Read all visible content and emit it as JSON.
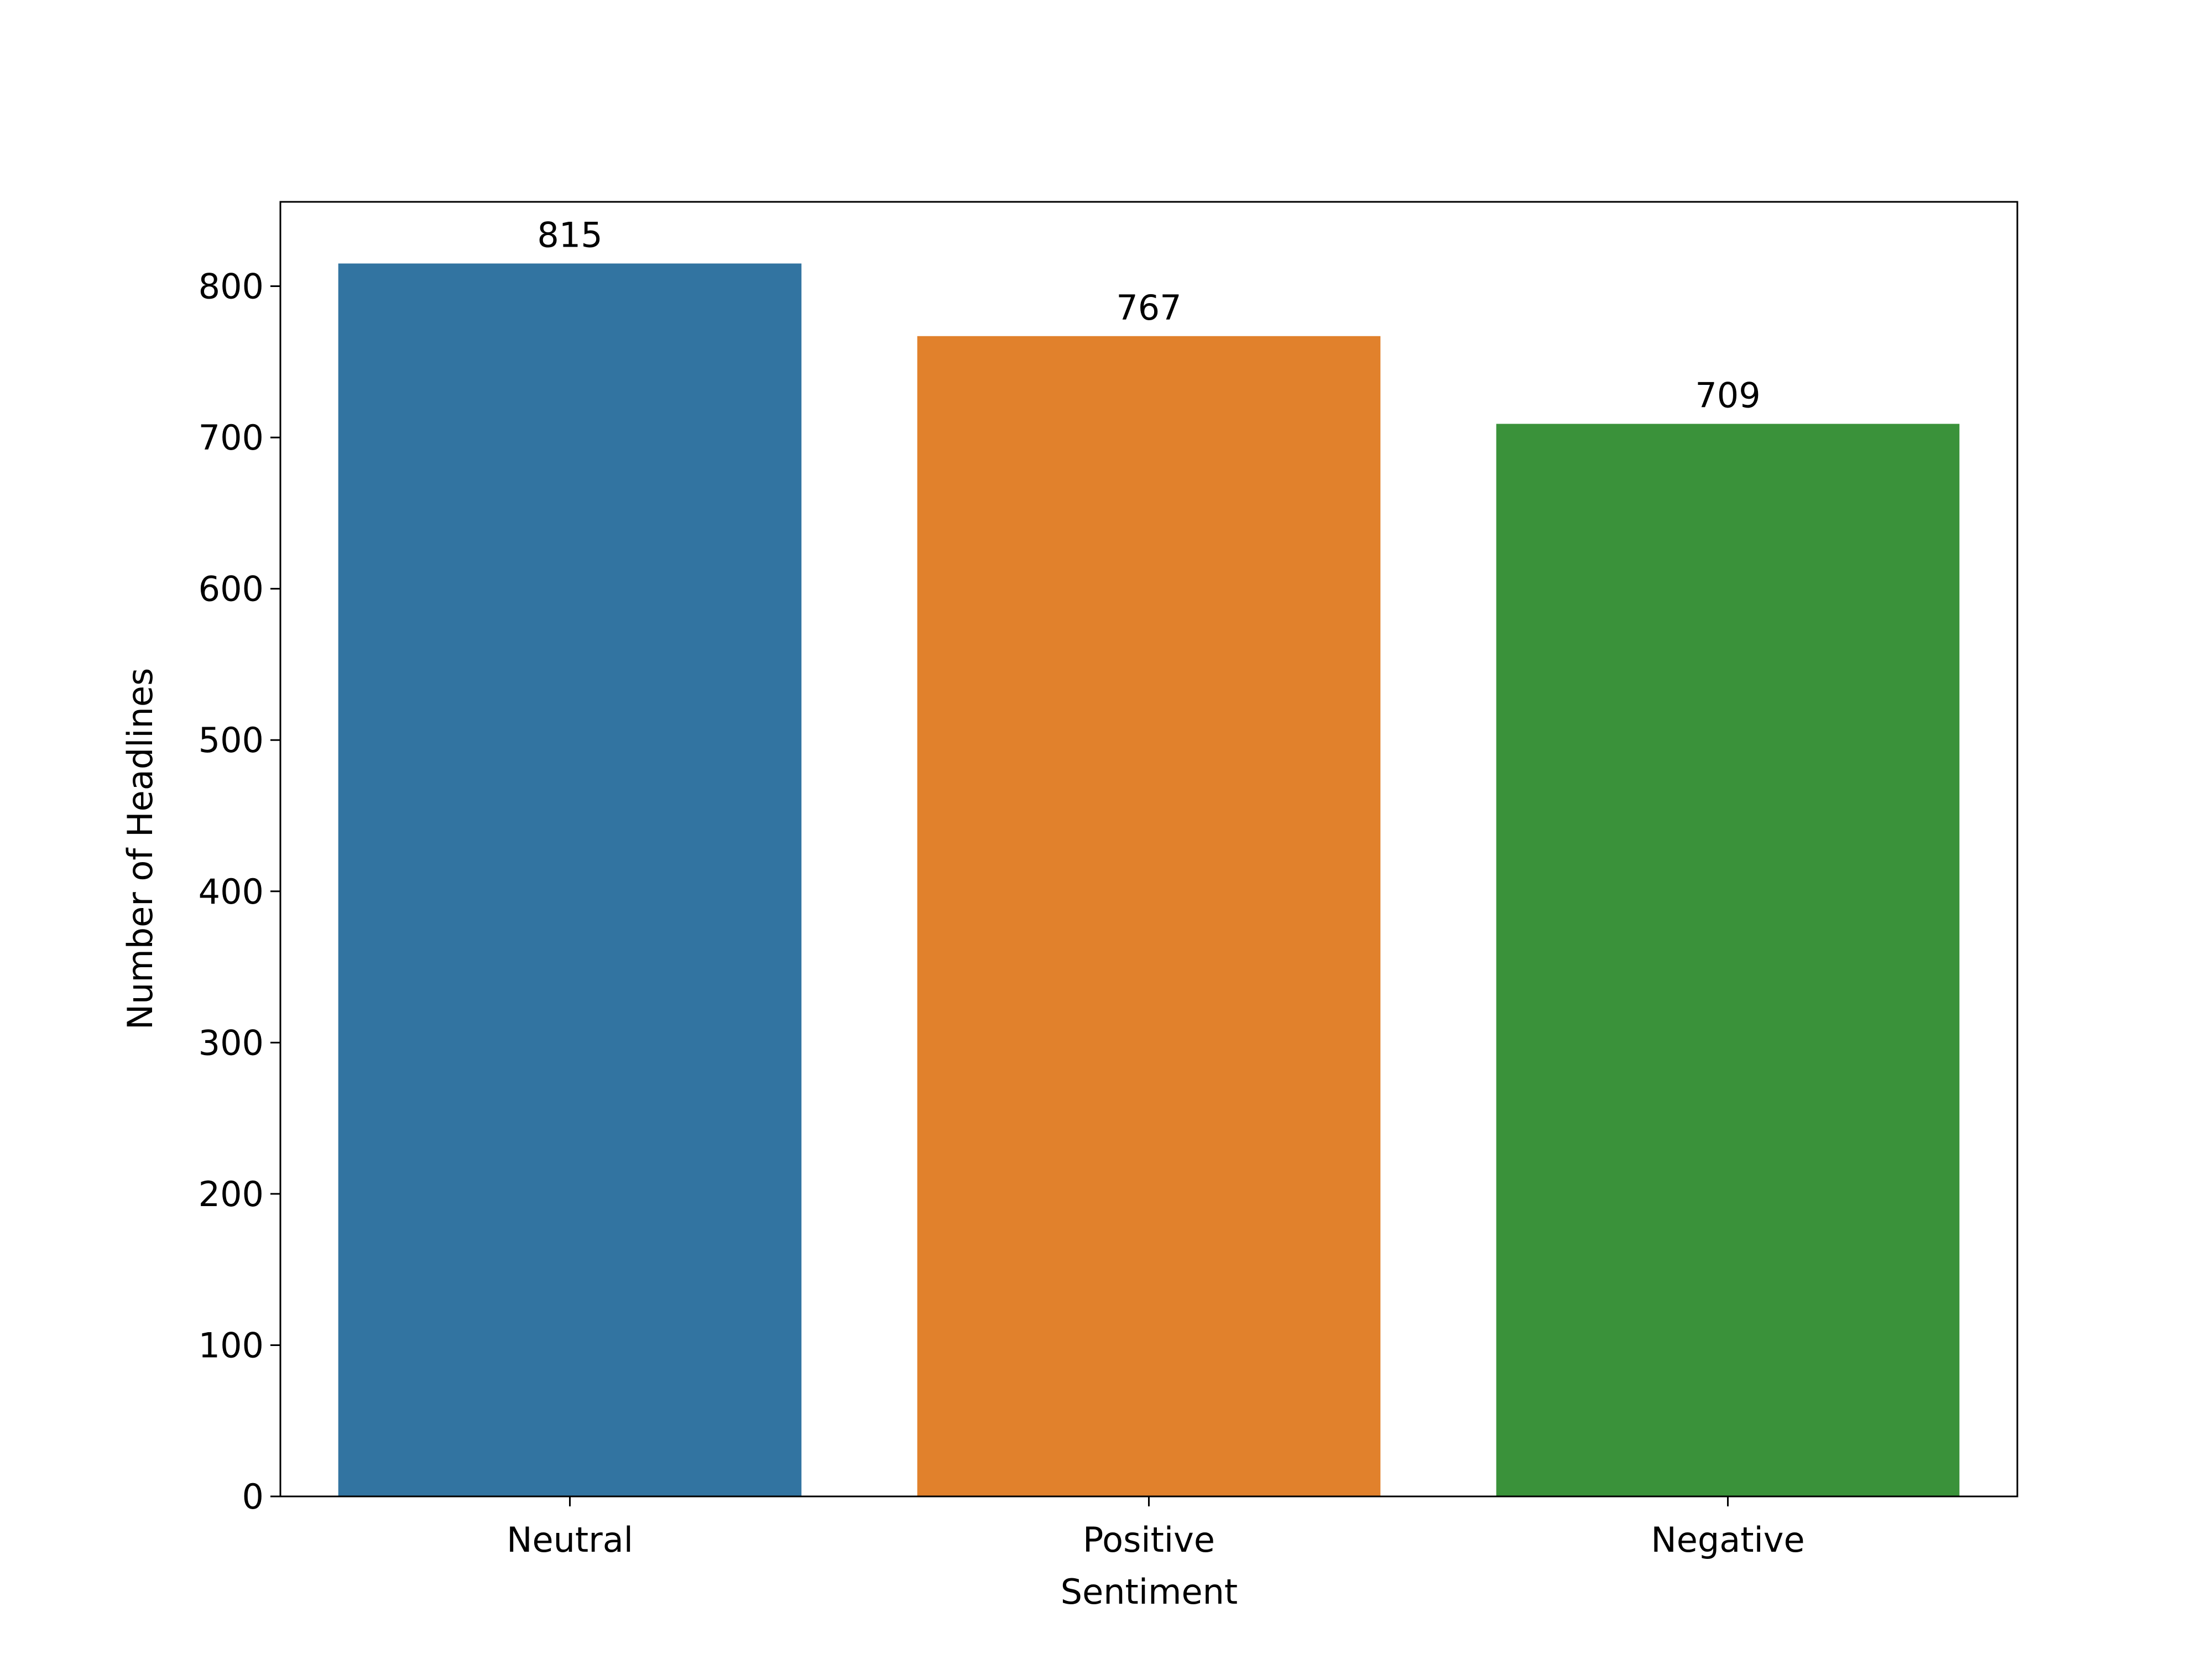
{
  "chart_data": {
    "type": "bar",
    "x_label": "Sentiment",
    "y_label": "Number of Headlines",
    "categories": [
      "Neutral",
      "Positive",
      "Negative"
    ],
    "values": [
      815,
      767,
      709
    ],
    "colors": [
      "#3274a1",
      "#e1812c",
      "#3a923a"
    ],
    "ylim": [
      0,
      855.75
    ],
    "yticks": [
      0,
      100,
      200,
      300,
      400,
      500,
      600,
      700,
      800
    ],
    "grid": false
  }
}
